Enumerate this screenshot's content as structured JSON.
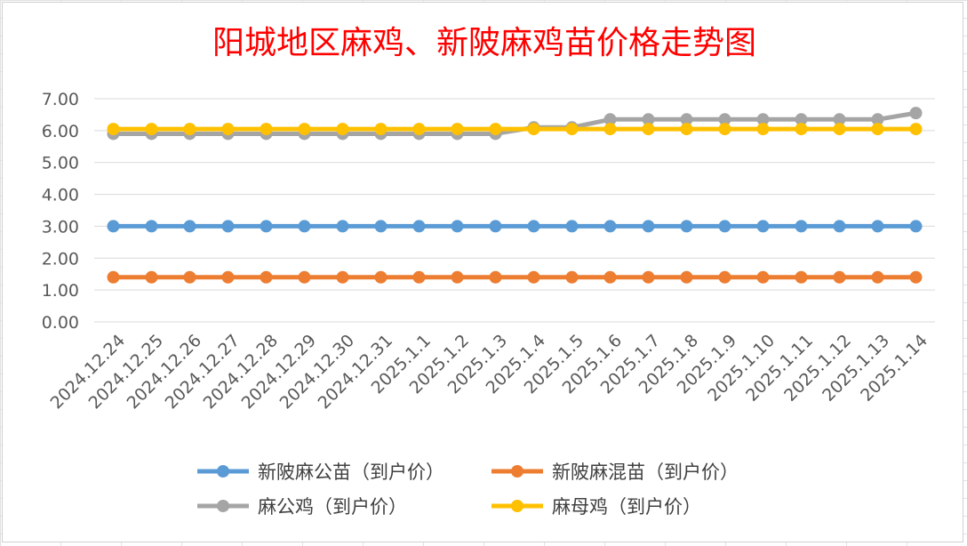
{
  "chart_data": {
    "type": "line",
    "title": "阳城地区麻鸡、新陂麻鸡苗价格走势图",
    "categories": [
      "2024.12.24",
      "2024.12.25",
      "2024.12.26",
      "2024.12.27",
      "2024.12.28",
      "2024.12.29",
      "2024.12.30",
      "2024.12.31",
      "2025.1.1",
      "2025.1.2",
      "2025.1.3",
      "2025.1.4",
      "2025.1.5",
      "2025.1.6",
      "2025.1.7",
      "2025.1.8",
      "2025.1.9",
      "2025.1.10",
      "2025.1.11",
      "2025.1.12",
      "2025.1.13",
      "2025.1.14"
    ],
    "yticks": [
      "0.00",
      "1.00",
      "2.00",
      "3.00",
      "4.00",
      "5.00",
      "6.00",
      "7.00"
    ],
    "ylim": [
      0,
      7
    ],
    "grid": true,
    "legend_position": "bottom",
    "series": [
      {
        "name": "新陂麻公苗（到户价）",
        "color": "#5b9bd5",
        "values": [
          3,
          3,
          3,
          3,
          3,
          3,
          3,
          3,
          3,
          3,
          3,
          3,
          3,
          3,
          3,
          3,
          3,
          3,
          3,
          3,
          3,
          3
        ]
      },
      {
        "name": "新陂麻混苗（到户价）",
        "color": "#ed7d31",
        "values": [
          1.4,
          1.4,
          1.4,
          1.4,
          1.4,
          1.4,
          1.4,
          1.4,
          1.4,
          1.4,
          1.4,
          1.4,
          1.4,
          1.4,
          1.4,
          1.4,
          1.4,
          1.4,
          1.4,
          1.4,
          1.4,
          1.4
        ]
      },
      {
        "name": "麻公鸡（到户价）",
        "color": "#a5a5a5",
        "values": [
          5.9,
          5.9,
          5.9,
          5.9,
          5.9,
          5.9,
          5.9,
          5.9,
          5.9,
          5.9,
          5.9,
          6.1,
          6.1,
          6.35,
          6.35,
          6.35,
          6.35,
          6.35,
          6.35,
          6.35,
          6.35,
          6.55
        ]
      },
      {
        "name": "麻母鸡（到户价）",
        "color": "#ffc000",
        "values": [
          6.05,
          6.05,
          6.05,
          6.05,
          6.05,
          6.05,
          6.05,
          6.05,
          6.05,
          6.05,
          6.05,
          6.05,
          6.05,
          6.05,
          6.05,
          6.05,
          6.05,
          6.05,
          6.05,
          6.05,
          6.05,
          6.05
        ]
      }
    ]
  }
}
